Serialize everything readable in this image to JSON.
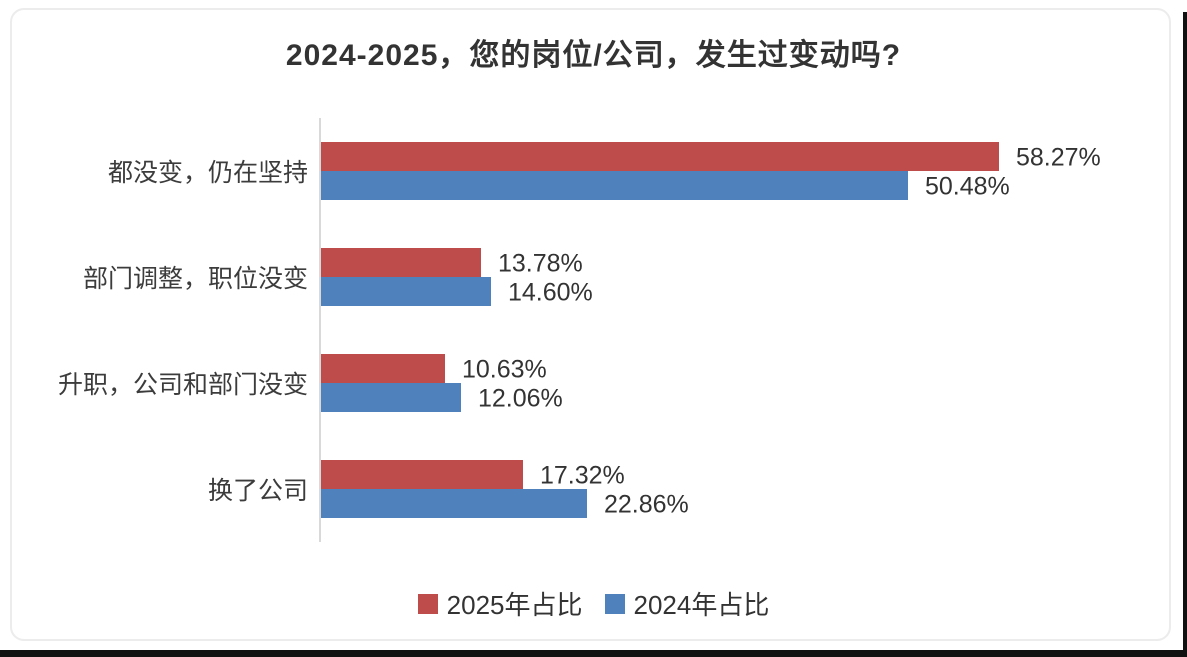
{
  "chart_data": {
    "type": "bar",
    "orientation": "horizontal",
    "title": "2024-2025，您的岗位/公司，发生过变动吗?",
    "categories": [
      "都没变，仍在坚持",
      "部门调整，职位没变",
      "升职，公司和部门没变",
      "换了公司"
    ],
    "series": [
      {
        "name": "2025年占比",
        "color": "#be4c4a",
        "values": [
          58.27,
          13.78,
          10.63,
          17.32
        ],
        "labels": [
          "58.27%",
          "13.78%",
          "10.63%",
          "17.32%"
        ]
      },
      {
        "name": "2024年占比",
        "color": "#4f81bd",
        "values": [
          50.48,
          14.6,
          12.06,
          22.86
        ],
        "labels": [
          "50.48%",
          "14.60%",
          "12.06%",
          "22.86%"
        ]
      }
    ],
    "xlim": [
      0,
      70
    ],
    "grid": false,
    "legend_position": "bottom",
    "axis_color": "#d9d9d9",
    "background_color": "#ffffff"
  }
}
